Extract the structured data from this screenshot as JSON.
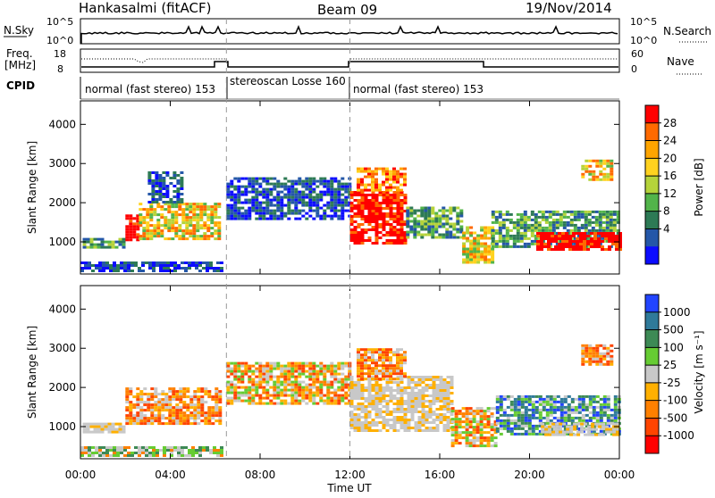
{
  "header": {
    "station": "Hankasalmi (fitACF)",
    "beam": "Beam 09",
    "date": "19/Nov/2014"
  },
  "top_panels": {
    "nsky_label": "N.Sky",
    "nsky_ticks": [
      "10^5",
      "10^0"
    ],
    "nsearch_label": "N.Search",
    "nsearch_ticks": [
      "10^5",
      "10^0"
    ],
    "freq_label_1": "Freq.",
    "freq_label_2": "[MHz]",
    "freq_ticks": [
      "18",
      "8"
    ],
    "nave_label": "Nave",
    "nave_ticks": [
      "60",
      "0"
    ],
    "cpid_label": "CPID",
    "modes": [
      {
        "label": "normal (fast stereo) 153",
        "start_hour": 0,
        "end_hour": 6.5
      },
      {
        "label": "stereoscan Losse 160",
        "start_hour": 6.5,
        "end_hour": 12
      },
      {
        "label": "normal (fast stereo) 153",
        "start_hour": 12,
        "end_hour": 24
      }
    ]
  },
  "power_colorbar": {
    "label": "Power [dB]",
    "ticks": [
      "28",
      "24",
      "20",
      "16",
      "12",
      "8",
      "4"
    ],
    "colors": [
      "#ff0000",
      "#ff6a00",
      "#ffa500",
      "#ffd21f",
      "#b5d33a",
      "#52b44a",
      "#2d7a55",
      "#2457a8",
      "#0c0cff"
    ]
  },
  "velocity_colorbar": {
    "label": "Velocity [m s⁻¹]",
    "ticks": [
      "1000",
      "500",
      "100",
      "25",
      "-25",
      "-100",
      "-500",
      "-1000"
    ],
    "colors": [
      "#2244ff",
      "#2f7a9a",
      "#3d8a55",
      "#66cc33",
      "#c8c8c8",
      "#ffb000",
      "#ff8000",
      "#ff4400",
      "#ff0000"
    ]
  },
  "chart_data": {
    "type": "heatmap",
    "panels": [
      "Power",
      "Velocity"
    ],
    "ylabel": "Slant Range [km]",
    "yticks": [
      "4000",
      "3000",
      "2000",
      "1000"
    ],
    "ylim": [
      180,
      4600
    ],
    "xlabel": "Time UT",
    "xticks": [
      "00:00",
      "04:00",
      "08:00",
      "12:00",
      "16:00",
      "20:00",
      "00:00"
    ],
    "xlim_hours": [
      0,
      24
    ],
    "mode_change_hours": [
      6.5,
      12
    ],
    "power_regions": [
      {
        "t0": 0.0,
        "t1": 6.3,
        "r0": 250,
        "r1": 500,
        "level": "low"
      },
      {
        "t0": 0.1,
        "t1": 2.0,
        "r0": 880,
        "r1": 1100,
        "level": "low-mid"
      },
      {
        "t0": 2.0,
        "t1": 2.6,
        "r0": 1050,
        "r1": 1700,
        "level": "high"
      },
      {
        "t0": 2.6,
        "t1": 6.2,
        "r0": 1100,
        "r1": 2000,
        "level": "mid"
      },
      {
        "t0": 3.0,
        "t1": 4.5,
        "r0": 2000,
        "r1": 2800,
        "level": "low"
      },
      {
        "t0": 6.5,
        "t1": 12.0,
        "r0": 1600,
        "r1": 2650,
        "level": "low"
      },
      {
        "t0": 12.0,
        "t1": 14.5,
        "r0": 1000,
        "r1": 2300,
        "level": "high"
      },
      {
        "t0": 12.3,
        "t1": 14.5,
        "r0": 2300,
        "r1": 2900,
        "level": "mid-high"
      },
      {
        "t0": 14.5,
        "t1": 17.0,
        "r0": 1100,
        "r1": 1900,
        "level": "low-mid"
      },
      {
        "t0": 17.0,
        "t1": 18.3,
        "r0": 500,
        "r1": 1400,
        "level": "mid"
      },
      {
        "t0": 18.3,
        "t1": 23.9,
        "r0": 900,
        "r1": 1800,
        "level": "low-mid"
      },
      {
        "t0": 20.3,
        "t1": 24.0,
        "r0": 800,
        "r1": 1250,
        "level": "high"
      },
      {
        "t0": 22.3,
        "t1": 23.6,
        "r0": 2600,
        "r1": 3100,
        "level": "mid"
      }
    ],
    "velocity_regions": [
      {
        "t0": 0.0,
        "t1": 6.3,
        "r0": 250,
        "r1": 500,
        "level": "mixed-small"
      },
      {
        "t0": 0.1,
        "t1": 2.0,
        "r0": 880,
        "r1": 1100,
        "level": "gray"
      },
      {
        "t0": 2.0,
        "t1": 6.2,
        "r0": 1100,
        "r1": 2000,
        "level": "negative"
      },
      {
        "t0": 6.5,
        "t1": 12.0,
        "r0": 1600,
        "r1": 2650,
        "level": "mixed"
      },
      {
        "t0": 12.0,
        "t1": 16.5,
        "r0": 900,
        "r1": 2300,
        "level": "gray"
      },
      {
        "t0": 12.3,
        "t1": 14.5,
        "r0": 2200,
        "r1": 3000,
        "level": "negative"
      },
      {
        "t0": 16.5,
        "t1": 18.5,
        "r0": 500,
        "r1": 1500,
        "level": "mixed"
      },
      {
        "t0": 18.5,
        "t1": 24.0,
        "r0": 800,
        "r1": 1800,
        "level": "positive"
      },
      {
        "t0": 20.5,
        "t1": 24.0,
        "r0": 800,
        "r1": 1100,
        "level": "gray"
      },
      {
        "t0": 22.3,
        "t1": 23.6,
        "r0": 2600,
        "r1": 3100,
        "level": "negative"
      }
    ]
  }
}
